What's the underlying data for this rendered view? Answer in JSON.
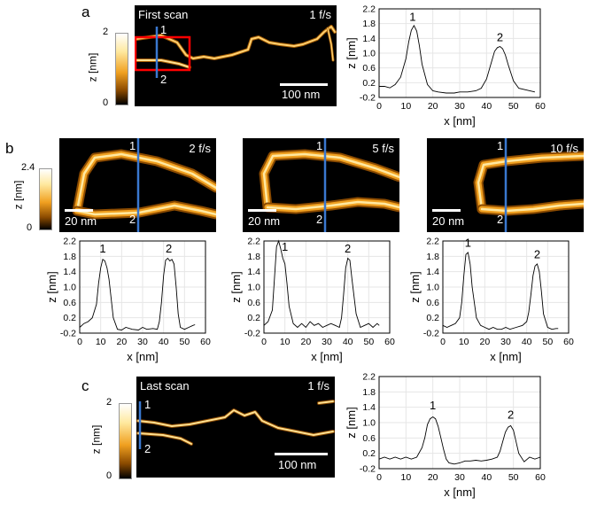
{
  "panels": {
    "a": {
      "label": "a",
      "scan_label": "First scan",
      "rate": "1 f/s",
      "scalebar": "100 nm",
      "markers": [
        "1",
        "2"
      ],
      "colorbar": {
        "max": "2",
        "min": "0",
        "label": "z [nm]"
      }
    },
    "b": {
      "label": "b",
      "colorbar": {
        "max": "2.4",
        "min": "0",
        "label": "z [nm]"
      },
      "images": [
        {
          "rate": "2 f/s",
          "scalebar": "20 nm",
          "markers": [
            "1",
            "2"
          ]
        },
        {
          "rate": "5 f/s",
          "scalebar": "20 nm",
          "markers": [
            "1",
            "2"
          ]
        },
        {
          "rate": "10 f/s",
          "scalebar": "20 nm",
          "markers": [
            "1",
            "2"
          ]
        }
      ]
    },
    "c": {
      "label": "c",
      "scan_label": "Last scan",
      "rate": "1 f/s",
      "scalebar": "100 nm",
      "markers": [
        "1",
        "2"
      ],
      "colorbar": {
        "max": "2",
        "min": "0",
        "label": "z [nm]"
      }
    }
  },
  "chart_data": [
    {
      "id": "a",
      "type": "line",
      "xlabel": "x [nm]",
      "ylabel": "z [nm]",
      "xlim": [
        0,
        60
      ],
      "ylim": [
        -0.2,
        2.2
      ],
      "xticks": [
        0,
        10,
        20,
        30,
        40,
        50,
        60
      ],
      "yticks": [
        -0.2,
        0.2,
        0.6,
        1.0,
        1.4,
        1.8,
        2.2
      ],
      "peak_labels": [
        {
          "text": "1",
          "x": 12.5,
          "y": 1.88
        },
        {
          "text": "2",
          "x": 45,
          "y": 1.32
        }
      ],
      "x": [
        0,
        2,
        4,
        6,
        8,
        10,
        11,
        12,
        13,
        14,
        15,
        16,
        18,
        20,
        22,
        25,
        28,
        30,
        33,
        36,
        38,
        40,
        42,
        43,
        44,
        45,
        46,
        47,
        48,
        50,
        52,
        55,
        58
      ],
      "y": [
        0.1,
        0.1,
        0.06,
        0.15,
        0.35,
        0.85,
        1.3,
        1.62,
        1.75,
        1.6,
        1.2,
        0.7,
        0.15,
        -0.02,
        -0.05,
        -0.08,
        -0.08,
        -0.05,
        -0.05,
        -0.02,
        0.05,
        0.3,
        0.8,
        1.05,
        1.15,
        1.18,
        1.12,
        0.95,
        0.7,
        0.25,
        0.05,
        0.0,
        -0.05
      ]
    },
    {
      "id": "b1",
      "type": "line",
      "xlabel": "x [nm]",
      "ylabel": "z [nm]",
      "xlim": [
        0,
        60
      ],
      "ylim": [
        -0.2,
        2.2
      ],
      "xticks": [
        0,
        10,
        20,
        30,
        40,
        50,
        60
      ],
      "yticks": [
        -0.2,
        0.2,
        0.6,
        1.0,
        1.4,
        1.8,
        2.2
      ],
      "peak_labels": [
        {
          "text": "1",
          "x": 11,
          "y": 1.9
        },
        {
          "text": "2",
          "x": 42.5,
          "y": 1.9
        }
      ],
      "x": [
        0,
        2,
        4,
        6,
        8,
        9,
        10,
        11,
        12,
        13,
        14,
        15,
        16,
        18,
        20,
        22,
        25,
        28,
        30,
        32,
        35,
        37,
        38,
        39,
        40,
        41,
        42,
        43,
        44,
        45,
        46,
        47,
        48,
        50,
        52,
        54,
        55
      ],
      "y": [
        -0.05,
        0.05,
        0.1,
        0.2,
        0.55,
        1.1,
        1.5,
        1.72,
        1.68,
        1.5,
        1.2,
        0.7,
        0.2,
        -0.1,
        -0.12,
        -0.05,
        -0.1,
        -0.12,
        -0.05,
        -0.1,
        -0.08,
        -0.1,
        0.1,
        0.6,
        1.3,
        1.7,
        1.75,
        1.68,
        1.72,
        1.6,
        1.0,
        0.3,
        -0.05,
        -0.1,
        -0.05,
        0.0,
        0.02
      ]
    },
    {
      "id": "b2",
      "type": "line",
      "xlabel": "x [nm]",
      "ylabel": "z [nm]",
      "xlim": [
        0,
        60
      ],
      "ylim": [
        -0.2,
        2.2
      ],
      "xticks": [
        0,
        10,
        20,
        30,
        40,
        50,
        60
      ],
      "yticks": [
        -0.2,
        0.2,
        0.6,
        1.0,
        1.4,
        1.8,
        2.2
      ],
      "peak_labels": [
        {
          "text": "1",
          "x": 10,
          "y": 1.95
        },
        {
          "text": "2",
          "x": 40,
          "y": 1.9
        }
      ],
      "x": [
        0,
        2,
        4,
        5,
        6,
        7,
        8,
        9,
        10,
        11,
        12,
        14,
        16,
        18,
        20,
        22,
        24,
        26,
        28,
        30,
        32,
        34,
        36,
        37,
        38,
        39,
        40,
        41,
        42,
        44,
        46,
        48,
        50,
        52,
        54,
        55
      ],
      "y": [
        0.0,
        0.1,
        0.4,
        1.2,
        2.05,
        2.2,
        2.0,
        1.75,
        1.6,
        1.1,
        0.5,
        0.05,
        -0.05,
        0.05,
        -0.05,
        0.1,
        0.0,
        0.05,
        -0.05,
        0.0,
        0.05,
        0.0,
        -0.05,
        0.2,
        0.8,
        1.5,
        1.75,
        1.7,
        1.2,
        0.3,
        -0.05,
        0.0,
        0.05,
        -0.05,
        0.05,
        0.0
      ]
    },
    {
      "id": "b3",
      "type": "line",
      "xlabel": "x [nm]",
      "ylabel": "z [nm]",
      "xlim": [
        0,
        60
      ],
      "ylim": [
        -0.2,
        2.2
      ],
      "xticks": [
        0,
        10,
        20,
        30,
        40,
        50,
        60
      ],
      "yticks": [
        -0.2,
        0.2,
        0.6,
        1.0,
        1.4,
        1.8,
        2.2
      ],
      "peak_labels": [
        {
          "text": "1",
          "x": 12,
          "y": 2.05
        },
        {
          "text": "2",
          "x": 45,
          "y": 1.75
        }
      ],
      "x": [
        0,
        2,
        4,
        6,
        8,
        9,
        10,
        11,
        12,
        13,
        14,
        16,
        18,
        20,
        22,
        24,
        26,
        28,
        30,
        32,
        35,
        38,
        40,
        41,
        42,
        43,
        44,
        45,
        46,
        47,
        48,
        50,
        52,
        54,
        55
      ],
      "y": [
        0.0,
        -0.05,
        0.0,
        0.05,
        0.2,
        0.6,
        1.3,
        1.85,
        1.9,
        1.6,
        1.0,
        0.2,
        0.0,
        -0.05,
        -0.1,
        -0.05,
        -0.1,
        -0.1,
        -0.05,
        -0.1,
        -0.05,
        0.0,
        0.1,
        0.35,
        0.8,
        1.3,
        1.55,
        1.6,
        1.4,
        0.9,
        0.3,
        -0.05,
        -0.1,
        -0.08,
        -0.08
      ]
    },
    {
      "id": "c",
      "type": "line",
      "xlabel": "x [nm]",
      "ylabel": "z [nm]",
      "xlim": [
        0,
        60
      ],
      "ylim": [
        -0.2,
        2.2
      ],
      "xticks": [
        0,
        10,
        20,
        30,
        40,
        50,
        60
      ],
      "yticks": [
        -0.2,
        0.2,
        0.6,
        1.0,
        1.4,
        1.8,
        2.2
      ],
      "peak_labels": [
        {
          "text": "1",
          "x": 20,
          "y": 1.35
        },
        {
          "text": "2",
          "x": 49,
          "y": 1.1
        }
      ],
      "x": [
        0,
        2,
        4,
        6,
        8,
        10,
        12,
        14,
        16,
        17,
        18,
        19,
        20,
        21,
        22,
        23,
        24,
        25,
        26,
        28,
        30,
        32,
        34,
        36,
        38,
        40,
        42,
        44,
        45,
        46,
        47,
        48,
        49,
        50,
        51,
        52,
        54,
        56,
        58,
        60
      ],
      "y": [
        0.05,
        0.1,
        0.05,
        0.1,
        0.05,
        0.1,
        0.05,
        0.1,
        0.35,
        0.6,
        0.95,
        1.1,
        1.15,
        1.1,
        0.9,
        0.6,
        0.3,
        0.05,
        -0.05,
        -0.08,
        -0.05,
        0.0,
        0.0,
        0.02,
        0.0,
        0.02,
        0.05,
        0.1,
        0.25,
        0.5,
        0.75,
        0.88,
        0.92,
        0.8,
        0.5,
        0.2,
        -0.02,
        0.1,
        0.05,
        0.1
      ]
    }
  ]
}
